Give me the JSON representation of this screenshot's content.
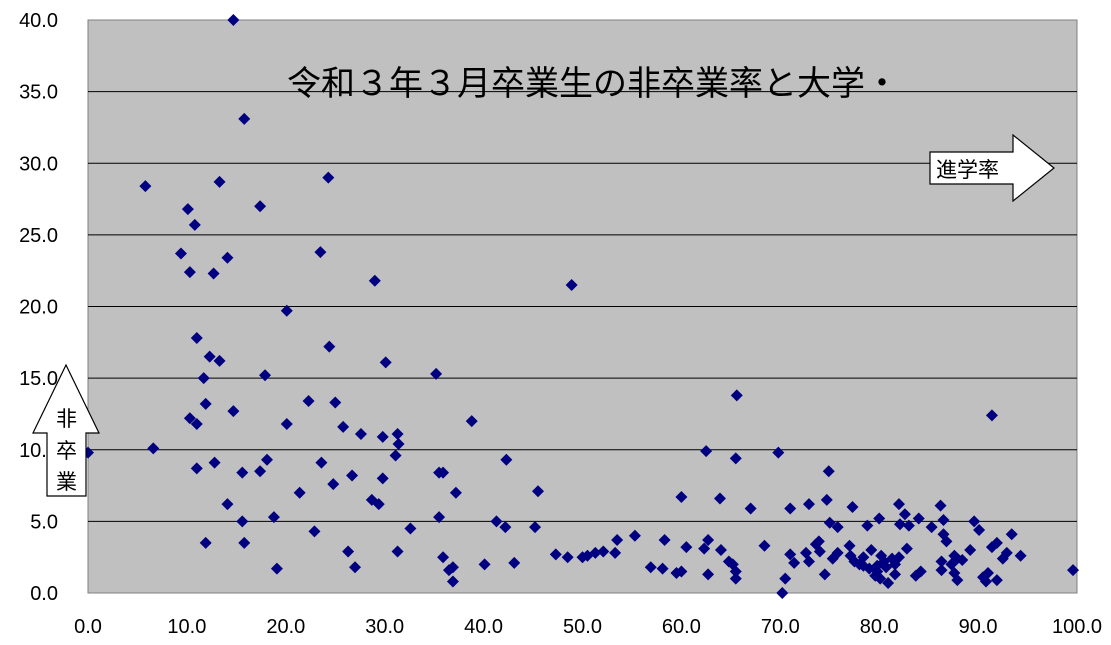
{
  "chart_data": {
    "type": "scatter",
    "title": "令和３年３月卒業生の非卒業率と大学・",
    "xlim": [
      0,
      100
    ],
    "ylim": [
      0,
      40
    ],
    "x_ticks": [
      "0.0",
      "10.0",
      "20.0",
      "30.0",
      "40.0",
      "50.0",
      "60.0",
      "70.0",
      "80.0",
      "90.0",
      "100.0"
    ],
    "y_ticks": [
      "0.0",
      "5.0",
      "10.0",
      "15.0",
      "20.0",
      "25.0",
      "30.0",
      "35.0",
      "40.0"
    ],
    "x_annotation": "進学率",
    "y_annotation": [
      "非",
      "卒",
      "業"
    ],
    "grid": true,
    "plot_background": "#c0c0c0",
    "marker_color": "#000080",
    "series": [
      {
        "points": [
          [
            0.0,
            9.8
          ],
          [
            5.8,
            28.4
          ],
          [
            6.6,
            10.1
          ],
          [
            9.4,
            23.7
          ],
          [
            10.1,
            26.8
          ],
          [
            10.3,
            22.4
          ],
          [
            10.3,
            12.2
          ],
          [
            10.8,
            25.7
          ],
          [
            11.0,
            17.8
          ],
          [
            11.0,
            11.8
          ],
          [
            11.0,
            8.7
          ],
          [
            11.7,
            15.0
          ],
          [
            11.9,
            13.2
          ],
          [
            11.9,
            3.5
          ],
          [
            12.3,
            16.5
          ],
          [
            12.7,
            22.3
          ],
          [
            12.8,
            9.1
          ],
          [
            13.3,
            16.2
          ],
          [
            13.3,
            28.7
          ],
          [
            14.1,
            23.4
          ],
          [
            14.1,
            6.2
          ],
          [
            14.7,
            12.7
          ],
          [
            14.7,
            40.0
          ],
          [
            15.6,
            8.4
          ],
          [
            15.6,
            5.0
          ],
          [
            15.8,
            3.5
          ],
          [
            15.8,
            33.1
          ],
          [
            17.4,
            27.0
          ],
          [
            17.4,
            8.5
          ],
          [
            17.9,
            15.2
          ],
          [
            18.1,
            9.3
          ],
          [
            18.8,
            5.3
          ],
          [
            19.1,
            1.7
          ],
          [
            20.1,
            19.7
          ],
          [
            20.1,
            11.8
          ],
          [
            21.4,
            7.0
          ],
          [
            22.3,
            13.4
          ],
          [
            22.9,
            4.3
          ],
          [
            23.5,
            23.8
          ],
          [
            23.6,
            9.1
          ],
          [
            24.3,
            29.0
          ],
          [
            24.4,
            17.2
          ],
          [
            24.8,
            7.6
          ],
          [
            25.0,
            13.3
          ],
          [
            25.8,
            11.6
          ],
          [
            26.3,
            2.9
          ],
          [
            26.7,
            8.2
          ],
          [
            27.0,
            1.8
          ],
          [
            27.6,
            11.1
          ],
          [
            28.7,
            6.5
          ],
          [
            29.0,
            21.8
          ],
          [
            29.4,
            6.2
          ],
          [
            29.8,
            10.9
          ],
          [
            29.8,
            8.0
          ],
          [
            30.1,
            16.1
          ],
          [
            31.1,
            9.6
          ],
          [
            31.3,
            11.1
          ],
          [
            31.3,
            2.9
          ],
          [
            31.4,
            10.4
          ],
          [
            32.6,
            4.5
          ],
          [
            35.2,
            15.3
          ],
          [
            35.5,
            5.3
          ],
          [
            35.5,
            8.4
          ],
          [
            35.9,
            8.4
          ],
          [
            35.9,
            2.5
          ],
          [
            36.5,
            1.6
          ],
          [
            36.9,
            1.8
          ],
          [
            36.9,
            0.8
          ],
          [
            37.2,
            7.0
          ],
          [
            38.8,
            12.0
          ],
          [
            40.1,
            2.0
          ],
          [
            41.3,
            5.0
          ],
          [
            42.2,
            4.6
          ],
          [
            42.3,
            9.3
          ],
          [
            43.1,
            2.1
          ],
          [
            45.2,
            4.6
          ],
          [
            45.5,
            7.1
          ],
          [
            47.3,
            2.7
          ],
          [
            48.5,
            2.5
          ],
          [
            48.9,
            21.5
          ],
          [
            50.0,
            2.5
          ],
          [
            50.5,
            2.6
          ],
          [
            51.3,
            2.8
          ],
          [
            52.1,
            2.9
          ],
          [
            53.3,
            2.8
          ],
          [
            53.5,
            3.7
          ],
          [
            55.3,
            4.0
          ],
          [
            56.9,
            1.8
          ],
          [
            58.1,
            1.7
          ],
          [
            58.3,
            3.7
          ],
          [
            59.5,
            1.4
          ],
          [
            60.0,
            1.5
          ],
          [
            60.0,
            6.7
          ],
          [
            60.5,
            3.2
          ],
          [
            62.3,
            3.1
          ],
          [
            62.5,
            9.9
          ],
          [
            62.7,
            3.7
          ],
          [
            62.7,
            1.3
          ],
          [
            63.9,
            6.6
          ],
          [
            64.0,
            3.0
          ],
          [
            64.8,
            2.2
          ],
          [
            65.2,
            2.0
          ],
          [
            65.5,
            9.4
          ],
          [
            65.5,
            1.5
          ],
          [
            65.5,
            1.0
          ],
          [
            65.6,
            13.8
          ],
          [
            67.0,
            5.9
          ],
          [
            68.4,
            3.3
          ],
          [
            69.8,
            9.8
          ],
          [
            70.2,
            0.0
          ],
          [
            70.5,
            1.0
          ],
          [
            71.0,
            2.7
          ],
          [
            71.0,
            5.9
          ],
          [
            71.4,
            2.1
          ],
          [
            72.6,
            2.8
          ],
          [
            72.9,
            2.2
          ],
          [
            72.9,
            6.2
          ],
          [
            73.6,
            3.4
          ],
          [
            73.9,
            3.6
          ],
          [
            74.0,
            2.9
          ],
          [
            74.5,
            1.3
          ],
          [
            74.7,
            6.5
          ],
          [
            74.9,
            8.5
          ],
          [
            75.0,
            4.9
          ],
          [
            75.3,
            2.4
          ],
          [
            75.8,
            2.8
          ],
          [
            75.8,
            4.6
          ],
          [
            77.0,
            3.3
          ],
          [
            77.1,
            2.6
          ],
          [
            77.3,
            6.0
          ],
          [
            77.5,
            2.2
          ],
          [
            78.0,
            2.0
          ],
          [
            78.4,
            2.5
          ],
          [
            78.4,
            1.9
          ],
          [
            78.8,
            4.7
          ],
          [
            79.0,
            1.7
          ],
          [
            79.2,
            3.0
          ],
          [
            79.6,
            1.2
          ],
          [
            79.8,
            1.9
          ],
          [
            79.8,
            1.5
          ],
          [
            80.0,
            5.2
          ],
          [
            80.1,
            1.0
          ],
          [
            80.2,
            2.6
          ],
          [
            80.5,
            2.2
          ],
          [
            80.7,
            1.8
          ],
          [
            80.9,
            0.7
          ],
          [
            81.3,
            2.4
          ],
          [
            81.6,
            1.3
          ],
          [
            81.6,
            2.0
          ],
          [
            82.0,
            6.2
          ],
          [
            82.0,
            2.5
          ],
          [
            82.1,
            4.8
          ],
          [
            82.6,
            5.5
          ],
          [
            82.8,
            3.1
          ],
          [
            83.0,
            4.7
          ],
          [
            83.7,
            1.2
          ],
          [
            84.0,
            5.2
          ],
          [
            84.2,
            1.5
          ],
          [
            85.3,
            4.6
          ],
          [
            86.2,
            6.1
          ],
          [
            86.3,
            2.2
          ],
          [
            86.3,
            1.6
          ],
          [
            86.5,
            5.1
          ],
          [
            86.5,
            4.1
          ],
          [
            86.8,
            3.6
          ],
          [
            87.3,
            2.0
          ],
          [
            87.6,
            2.6
          ],
          [
            87.6,
            1.4
          ],
          [
            87.9,
            2.4
          ],
          [
            87.9,
            0.9
          ],
          [
            88.4,
            2.3
          ],
          [
            89.2,
            3.0
          ],
          [
            89.6,
            5.0
          ],
          [
            90.1,
            4.4
          ],
          [
            90.5,
            1.1
          ],
          [
            90.8,
            0.8
          ],
          [
            91.0,
            1.4
          ],
          [
            91.4,
            3.2
          ],
          [
            91.4,
            12.4
          ],
          [
            91.9,
            3.5
          ],
          [
            91.9,
            0.9
          ],
          [
            92.5,
            2.4
          ],
          [
            92.9,
            2.8
          ],
          [
            93.4,
            4.1
          ],
          [
            94.3,
            2.6
          ],
          [
            99.6,
            1.6
          ]
        ]
      }
    ]
  }
}
